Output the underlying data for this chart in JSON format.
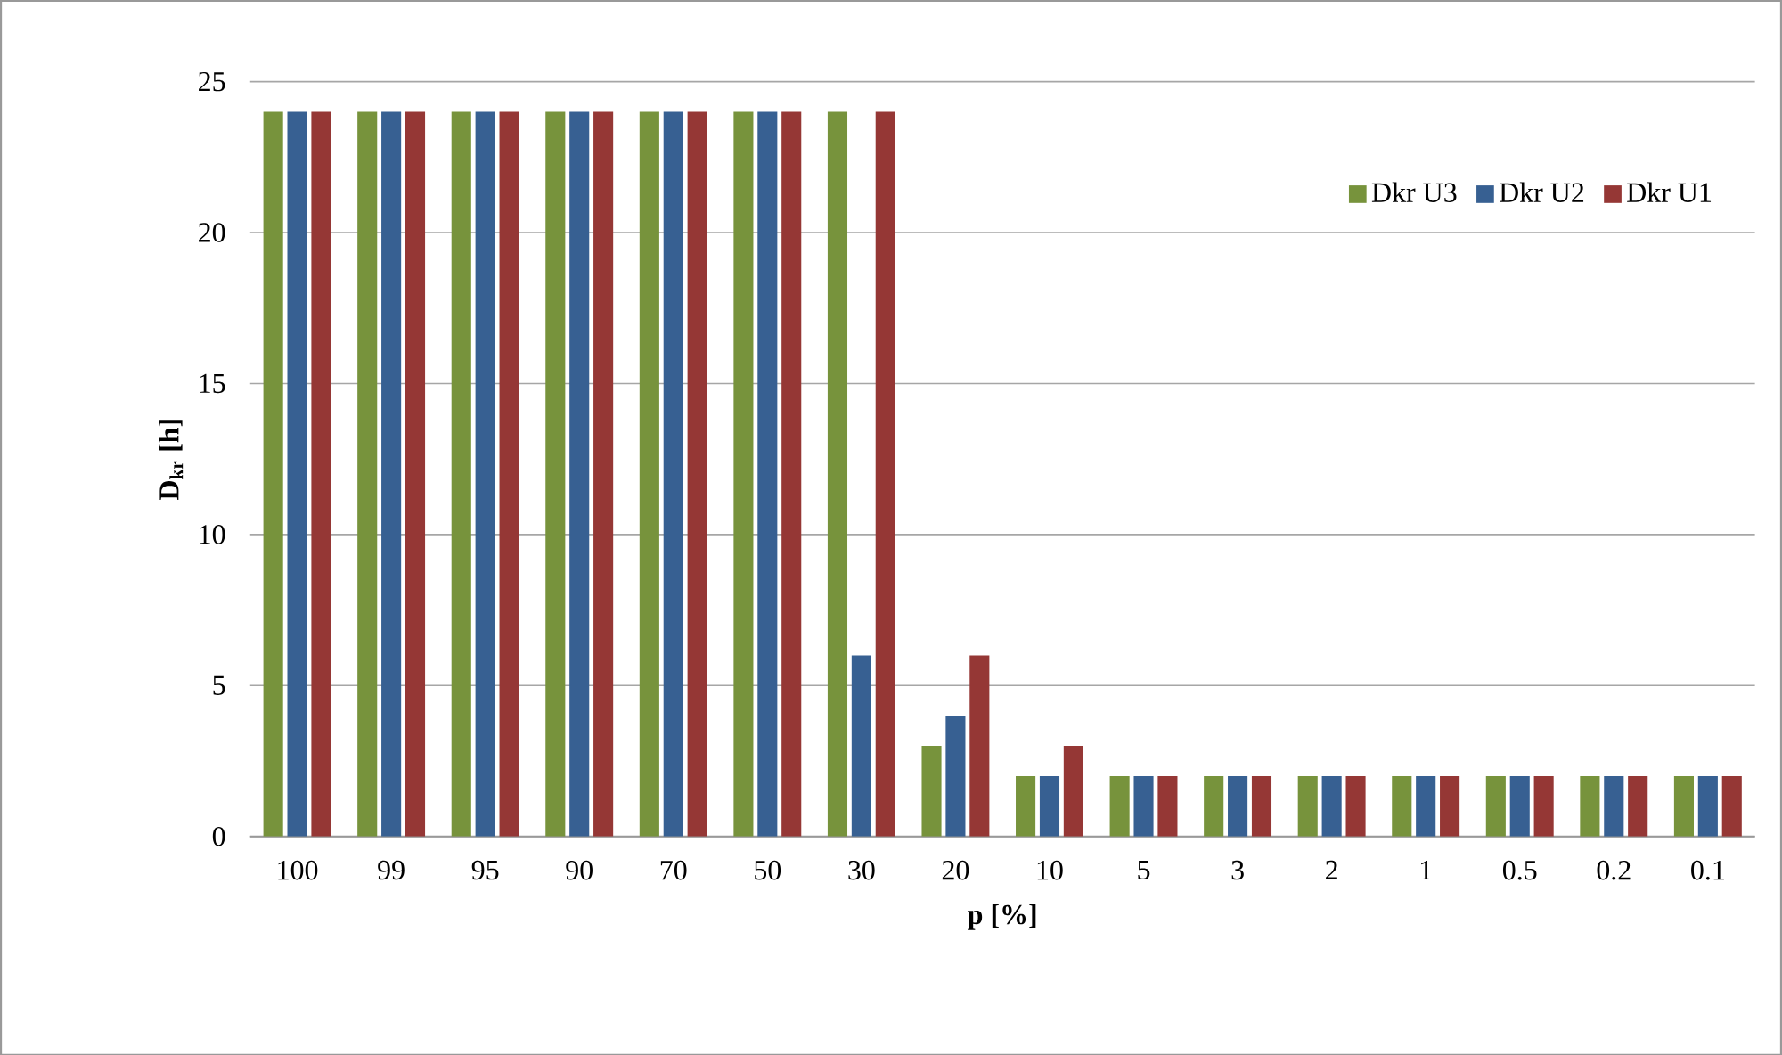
{
  "chart_data": {
    "type": "bar",
    "xlabel": "p [%]",
    "ylabel": "D$_{kr}$ [h]",
    "categories": [
      "100",
      "99",
      "95",
      "90",
      "70",
      "50",
      "30",
      "20",
      "10",
      "5",
      "3",
      "2",
      "1",
      "0.5",
      "0.2",
      "0.1"
    ],
    "series": [
      {
        "name": "Dkr U3",
        "color": "#77933c",
        "values": [
          24,
          24,
          24,
          24,
          24,
          24,
          24,
          3,
          2,
          2,
          2,
          2,
          2,
          2,
          2,
          2
        ]
      },
      {
        "name": "Dkr U2",
        "color": "#376092",
        "values": [
          24,
          24,
          24,
          24,
          24,
          24,
          6,
          4,
          2,
          2,
          2,
          2,
          2,
          2,
          2,
          2
        ]
      },
      {
        "name": "Dkr U1",
        "color": "#953735",
        "values": [
          24,
          24,
          24,
          24,
          24,
          24,
          24,
          6,
          3,
          2,
          2,
          2,
          2,
          2,
          2,
          2
        ]
      }
    ],
    "ylim": [
      0,
      25
    ],
    "yticks": [
      0,
      5,
      10,
      15,
      20,
      25
    ],
    "grid": "y",
    "legend": "top right"
  }
}
